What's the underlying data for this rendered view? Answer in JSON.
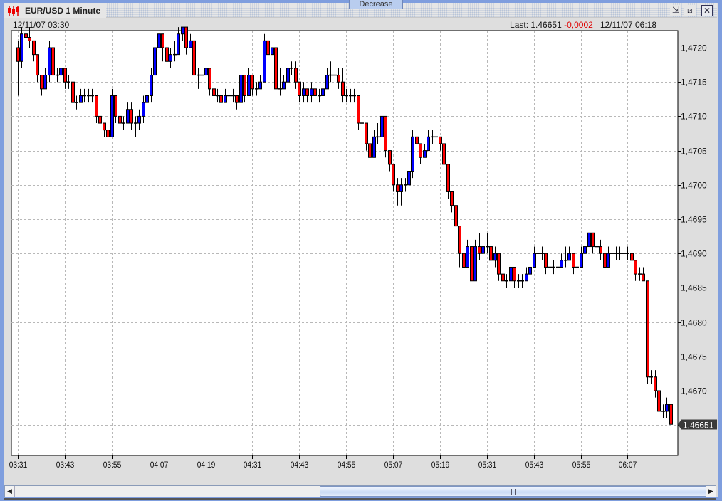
{
  "window": {
    "top_tab_label": "Decrease",
    "title": "EUR/USD 1 Minute",
    "icons": {
      "app": "candlestick-chart-icon",
      "minimize": "minimize-icon",
      "maximize": "maximize-icon",
      "close": "close-icon"
    }
  },
  "info": {
    "start_time": "12/11/07 03:30",
    "last_label": "Last: 1.46651",
    "change": "-0,0002",
    "end_time": "12/11/07 06:18"
  },
  "colors": {
    "up": "#0000ff",
    "down": "#ff0000",
    "doji": "#000000",
    "grid": "#b8b8b8",
    "last_badge": "#3a3a3a",
    "change": "#e00000"
  },
  "chart_data": {
    "type": "candlestick",
    "symbol": "EUR/USD",
    "interval": "1 Minute",
    "grid": true,
    "y_axis_position": "right",
    "ylim": [
      1.4659,
      1.4723
    ],
    "y_ticks": [
      {
        "value": 1.472,
        "label": "1,4720"
      },
      {
        "value": 1.4715,
        "label": "1,4715"
      },
      {
        "value": 1.471,
        "label": "1,4710"
      },
      {
        "value": 1.4705,
        "label": "1,4705"
      },
      {
        "value": 1.47,
        "label": "1,4700"
      },
      {
        "value": 1.4695,
        "label": "1,4695"
      },
      {
        "value": 1.469,
        "label": "1,4690"
      },
      {
        "value": 1.4685,
        "label": "1,4685"
      },
      {
        "value": 1.468,
        "label": "1,4680"
      },
      {
        "value": 1.4675,
        "label": "1,4675"
      },
      {
        "value": 1.467,
        "label": "1,4670"
      },
      {
        "value": 1.4665,
        "label": ""
      }
    ],
    "x_first_time": "03:31",
    "x_last_time": "06:18",
    "x_ticks": [
      "03:31",
      "03:43",
      "03:55",
      "04:07",
      "04:19",
      "04:31",
      "04:43",
      "04:55",
      "05:07",
      "05:19",
      "05:31",
      "05:43",
      "05:55",
      "06:07"
    ],
    "x_tick_step_minutes": 12,
    "last_price": {
      "value": 1.46651,
      "label": "1,46651"
    },
    "ohlc_fields": [
      "open",
      "high",
      "low",
      "close"
    ],
    "candles": [
      [
        1.472,
        1.4721,
        1.4713,
        1.4718
      ],
      [
        1.4718,
        1.4723,
        1.4717,
        1.4722
      ],
      [
        1.4722,
        1.4723,
        1.4721,
        1.47215
      ],
      [
        1.47215,
        1.4723,
        1.472,
        1.4721
      ],
      [
        1.4721,
        1.4721,
        1.4718,
        1.4719
      ],
      [
        1.4719,
        1.4719,
        1.4715,
        1.4716
      ],
      [
        1.4716,
        1.4716,
        1.4713,
        1.4714
      ],
      [
        1.4714,
        1.4717,
        1.4714,
        1.4716
      ],
      [
        1.4716,
        1.4721,
        1.4715,
        1.472
      ],
      [
        1.472,
        1.4721,
        1.4715,
        1.4716
      ],
      [
        1.4716,
        1.4717,
        1.4715,
        1.4716
      ],
      [
        1.4716,
        1.4718,
        1.4716,
        1.4717
      ],
      [
        1.4717,
        1.4717,
        1.4714,
        1.4715
      ],
      [
        1.4715,
        1.4716,
        1.4714,
        1.4715
      ],
      [
        1.4715,
        1.4715,
        1.4711,
        1.4712
      ],
      [
        1.4712,
        1.4713,
        1.4711,
        1.4712
      ],
      [
        1.4712,
        1.4714,
        1.4712,
        1.4713
      ],
      [
        1.4713,
        1.4714,
        1.4712,
        1.4713
      ],
      [
        1.4713,
        1.4714,
        1.4712,
        1.4713
      ],
      [
        1.4713,
        1.4714,
        1.4712,
        1.4713
      ],
      [
        1.4713,
        1.4713,
        1.4709,
        1.471
      ],
      [
        1.471,
        1.4711,
        1.4708,
        1.4709
      ],
      [
        1.4709,
        1.4709,
        1.4707,
        1.4708
      ],
      [
        1.4708,
        1.4708,
        1.4707,
        1.4707
      ],
      [
        1.4707,
        1.4714,
        1.4707,
        1.4713
      ],
      [
        1.4713,
        1.4713,
        1.4709,
        1.471
      ],
      [
        1.471,
        1.4711,
        1.4708,
        1.4709
      ],
      [
        1.4709,
        1.471,
        1.4708,
        1.4709
      ],
      [
        1.4709,
        1.4712,
        1.4709,
        1.4711
      ],
      [
        1.4711,
        1.4712,
        1.4708,
        1.4709
      ],
      [
        1.4709,
        1.471,
        1.4707,
        1.4709
      ],
      [
        1.4709,
        1.4711,
        1.4708,
        1.471
      ],
      [
        1.471,
        1.4713,
        1.4709,
        1.4712
      ],
      [
        1.4712,
        1.4714,
        1.4711,
        1.4713
      ],
      [
        1.4713,
        1.4717,
        1.4712,
        1.4716
      ],
      [
        1.4716,
        1.4721,
        1.4715,
        1.472
      ],
      [
        1.472,
        1.4723,
        1.4719,
        1.4722
      ],
      [
        1.4722,
        1.4722,
        1.4718,
        1.472
      ],
      [
        1.472,
        1.472,
        1.4717,
        1.4718
      ],
      [
        1.4718,
        1.472,
        1.4717,
        1.4719
      ],
      [
        1.4719,
        1.4721,
        1.4718,
        1.4719
      ],
      [
        1.4719,
        1.4723,
        1.4719,
        1.4722
      ],
      [
        1.4722,
        1.4723,
        1.4721,
        1.4723
      ],
      [
        1.4723,
        1.4723,
        1.4719,
        1.472
      ],
      [
        1.472,
        1.4722,
        1.472,
        1.4721
      ],
      [
        1.4721,
        1.4721,
        1.4715,
        1.4716
      ],
      [
        1.4716,
        1.4717,
        1.4714,
        1.4716
      ],
      [
        1.4716,
        1.4718,
        1.4714,
        1.4716
      ],
      [
        1.4716,
        1.4718,
        1.4716,
        1.4717
      ],
      [
        1.4717,
        1.4717,
        1.4713,
        1.4714
      ],
      [
        1.4714,
        1.4715,
        1.4712,
        1.4713
      ],
      [
        1.4713,
        1.4714,
        1.4712,
        1.4713
      ],
      [
        1.4713,
        1.4713,
        1.4711,
        1.4712
      ],
      [
        1.4712,
        1.4714,
        1.4712,
        1.4713
      ],
      [
        1.4713,
        1.4714,
        1.4712,
        1.4713
      ],
      [
        1.4713,
        1.4714,
        1.4712,
        1.4713
      ],
      [
        1.4713,
        1.4713,
        1.4711,
        1.4712
      ],
      [
        1.4712,
        1.4717,
        1.4712,
        1.4716
      ],
      [
        1.4716,
        1.4716,
        1.4712,
        1.4713
      ],
      [
        1.4713,
        1.4717,
        1.4713,
        1.4716
      ],
      [
        1.4716,
        1.4716,
        1.4713,
        1.4714
      ],
      [
        1.4714,
        1.4715,
        1.4713,
        1.4714
      ],
      [
        1.4714,
        1.4716,
        1.4714,
        1.4715
      ],
      [
        1.4715,
        1.4722,
        1.4715,
        1.4721
      ],
      [
        1.4721,
        1.4721,
        1.4718,
        1.4719
      ],
      [
        1.4719,
        1.472,
        1.4719,
        1.472
      ],
      [
        1.472,
        1.4721,
        1.4713,
        1.4714
      ],
      [
        1.4714,
        1.4717,
        1.4713,
        1.4714
      ],
      [
        1.4714,
        1.4716,
        1.4714,
        1.4715
      ],
      [
        1.4715,
        1.4718,
        1.4714,
        1.4717
      ],
      [
        1.4717,
        1.4718,
        1.4716,
        1.4717
      ],
      [
        1.4717,
        1.4718,
        1.4714,
        1.4715
      ],
      [
        1.4715,
        1.4715,
        1.4712,
        1.4713
      ],
      [
        1.4713,
        1.4715,
        1.4712,
        1.4714
      ],
      [
        1.4714,
        1.4714,
        1.4712,
        1.4713
      ],
      [
        1.4713,
        1.4715,
        1.4712,
        1.4714
      ],
      [
        1.4714,
        1.4714,
        1.4712,
        1.4713
      ],
      [
        1.4713,
        1.4714,
        1.4712,
        1.4713
      ],
      [
        1.4713,
        1.4715,
        1.4713,
        1.4714
      ],
      [
        1.4714,
        1.4717,
        1.4714,
        1.4716
      ],
      [
        1.4716,
        1.4718,
        1.4715,
        1.4716
      ],
      [
        1.4716,
        1.4717,
        1.4715,
        1.4716
      ],
      [
        1.4716,
        1.4717,
        1.4714,
        1.4715
      ],
      [
        1.4715,
        1.4717,
        1.4712,
        1.4713
      ],
      [
        1.4713,
        1.4714,
        1.4712,
        1.4713
      ],
      [
        1.4713,
        1.4714,
        1.4712,
        1.4713
      ],
      [
        1.4713,
        1.4714,
        1.4712,
        1.4713
      ],
      [
        1.4713,
        1.4713,
        1.4708,
        1.4709
      ],
      [
        1.4709,
        1.471,
        1.4708,
        1.4709
      ],
      [
        1.4709,
        1.4709,
        1.4705,
        1.4706
      ],
      [
        1.4706,
        1.4707,
        1.4703,
        1.4704
      ],
      [
        1.4704,
        1.4708,
        1.4704,
        1.4707
      ],
      [
        1.4707,
        1.4709,
        1.4706,
        1.4707
      ],
      [
        1.4707,
        1.4711,
        1.4707,
        1.471
      ],
      [
        1.471,
        1.471,
        1.4704,
        1.4705
      ],
      [
        1.4705,
        1.4705,
        1.4702,
        1.4703
      ],
      [
        1.4703,
        1.4703,
        1.4699,
        1.47
      ],
      [
        1.47,
        1.4701,
        1.4697,
        1.4699
      ],
      [
        1.4699,
        1.4701,
        1.4697,
        1.47
      ],
      [
        1.47,
        1.4701,
        1.4699,
        1.47
      ],
      [
        1.47,
        1.4703,
        1.47,
        1.4702
      ],
      [
        1.4702,
        1.4708,
        1.4701,
        1.4707
      ],
      [
        1.4707,
        1.4708,
        1.4705,
        1.4706
      ],
      [
        1.4706,
        1.4706,
        1.4703,
        1.4704
      ],
      [
        1.4704,
        1.4706,
        1.4704,
        1.4705
      ],
      [
        1.4705,
        1.4708,
        1.4705,
        1.4707
      ],
      [
        1.4707,
        1.4708,
        1.4706,
        1.4707
      ],
      [
        1.4707,
        1.4708,
        1.4706,
        1.4707
      ],
      [
        1.4707,
        1.4707,
        1.4705,
        1.4706
      ],
      [
        1.4706,
        1.4706,
        1.4702,
        1.4703
      ],
      [
        1.4703,
        1.4703,
        1.4698,
        1.4699
      ],
      [
        1.4699,
        1.4699,
        1.4696,
        1.4697
      ],
      [
        1.4697,
        1.4697,
        1.4693,
        1.4694
      ],
      [
        1.4694,
        1.4694,
        1.4688,
        1.469
      ],
      [
        1.469,
        1.4691,
        1.4687,
        1.4688
      ],
      [
        1.4688,
        1.4692,
        1.4688,
        1.4691
      ],
      [
        1.4691,
        1.4691,
        1.4686,
        1.4686
      ],
      [
        1.4686,
        1.4692,
        1.4686,
        1.4691
      ],
      [
        1.4691,
        1.4693,
        1.4689,
        1.469
      ],
      [
        1.469,
        1.4693,
        1.469,
        1.4691
      ],
      [
        1.4691,
        1.4693,
        1.469,
        1.4691
      ],
      [
        1.4691,
        1.4692,
        1.4688,
        1.4689
      ],
      [
        1.4689,
        1.4691,
        1.4688,
        1.469
      ],
      [
        1.469,
        1.469,
        1.4686,
        1.4687
      ],
      [
        1.4687,
        1.4688,
        1.4684,
        1.4686
      ],
      [
        1.4686,
        1.4687,
        1.4685,
        1.4686
      ],
      [
        1.4686,
        1.4689,
        1.4685,
        1.4688
      ],
      [
        1.4688,
        1.4688,
        1.4685,
        1.4686
      ],
      [
        1.4686,
        1.4687,
        1.4685,
        1.4686
      ],
      [
        1.4686,
        1.4687,
        1.4685,
        1.4686
      ],
      [
        1.4686,
        1.4688,
        1.4686,
        1.4687
      ],
      [
        1.4687,
        1.4689,
        1.4687,
        1.4688
      ],
      [
        1.4688,
        1.4691,
        1.4688,
        1.469
      ],
      [
        1.469,
        1.4691,
        1.4689,
        1.469
      ],
      [
        1.469,
        1.4691,
        1.4689,
        1.469
      ],
      [
        1.469,
        1.469,
        1.4687,
        1.4688
      ],
      [
        1.4688,
        1.4689,
        1.4687,
        1.4688
      ],
      [
        1.4688,
        1.4689,
        1.4687,
        1.4688
      ],
      [
        1.4688,
        1.4689,
        1.4687,
        1.4688
      ],
      [
        1.4688,
        1.469,
        1.4688,
        1.4689
      ],
      [
        1.4689,
        1.4691,
        1.4688,
        1.4689
      ],
      [
        1.4689,
        1.4691,
        1.4689,
        1.469
      ],
      [
        1.469,
        1.469,
        1.4687,
        1.4688
      ],
      [
        1.4688,
        1.4689,
        1.4687,
        1.4688
      ],
      [
        1.4688,
        1.4691,
        1.4688,
        1.469
      ],
      [
        1.469,
        1.4692,
        1.469,
        1.4691
      ],
      [
        1.4691,
        1.4693,
        1.4691,
        1.4693
      ],
      [
        1.4693,
        1.4693,
        1.469,
        1.4691
      ],
      [
        1.4691,
        1.4692,
        1.469,
        1.4691
      ],
      [
        1.4691,
        1.4692,
        1.4689,
        1.469
      ],
      [
        1.469,
        1.4691,
        1.4687,
        1.4688
      ],
      [
        1.4688,
        1.4691,
        1.4688,
        1.469
      ],
      [
        1.469,
        1.4691,
        1.4689,
        1.469
      ],
      [
        1.469,
        1.4691,
        1.4689,
        1.469
      ],
      [
        1.469,
        1.4691,
        1.4689,
        1.469
      ],
      [
        1.469,
        1.4691,
        1.4689,
        1.469
      ],
      [
        1.469,
        1.4691,
        1.4689,
        1.469
      ],
      [
        1.469,
        1.469,
        1.4689,
        1.4689
      ],
      [
        1.4689,
        1.4689,
        1.4686,
        1.4687
      ],
      [
        1.4687,
        1.4688,
        1.4686,
        1.4687
      ],
      [
        1.4687,
        1.4688,
        1.4686,
        1.4686
      ],
      [
        1.4686,
        1.4686,
        1.4671,
        1.4672
      ],
      [
        1.4672,
        1.4673,
        1.4671,
        1.4672
      ],
      [
        1.4672,
        1.4673,
        1.4669,
        1.467
      ],
      [
        1.467,
        1.467,
        1.4661,
        1.4667
      ],
      [
        1.4667,
        1.4668,
        1.4666,
        1.4667
      ],
      [
        1.4667,
        1.4669,
        1.4666,
        1.4668
      ],
      [
        1.4668,
        1.4668,
        1.46651,
        1.46651
      ]
    ]
  },
  "scrollbar": {
    "left_icon": "arrow-left-icon",
    "right_icon": "arrow-right-icon"
  }
}
